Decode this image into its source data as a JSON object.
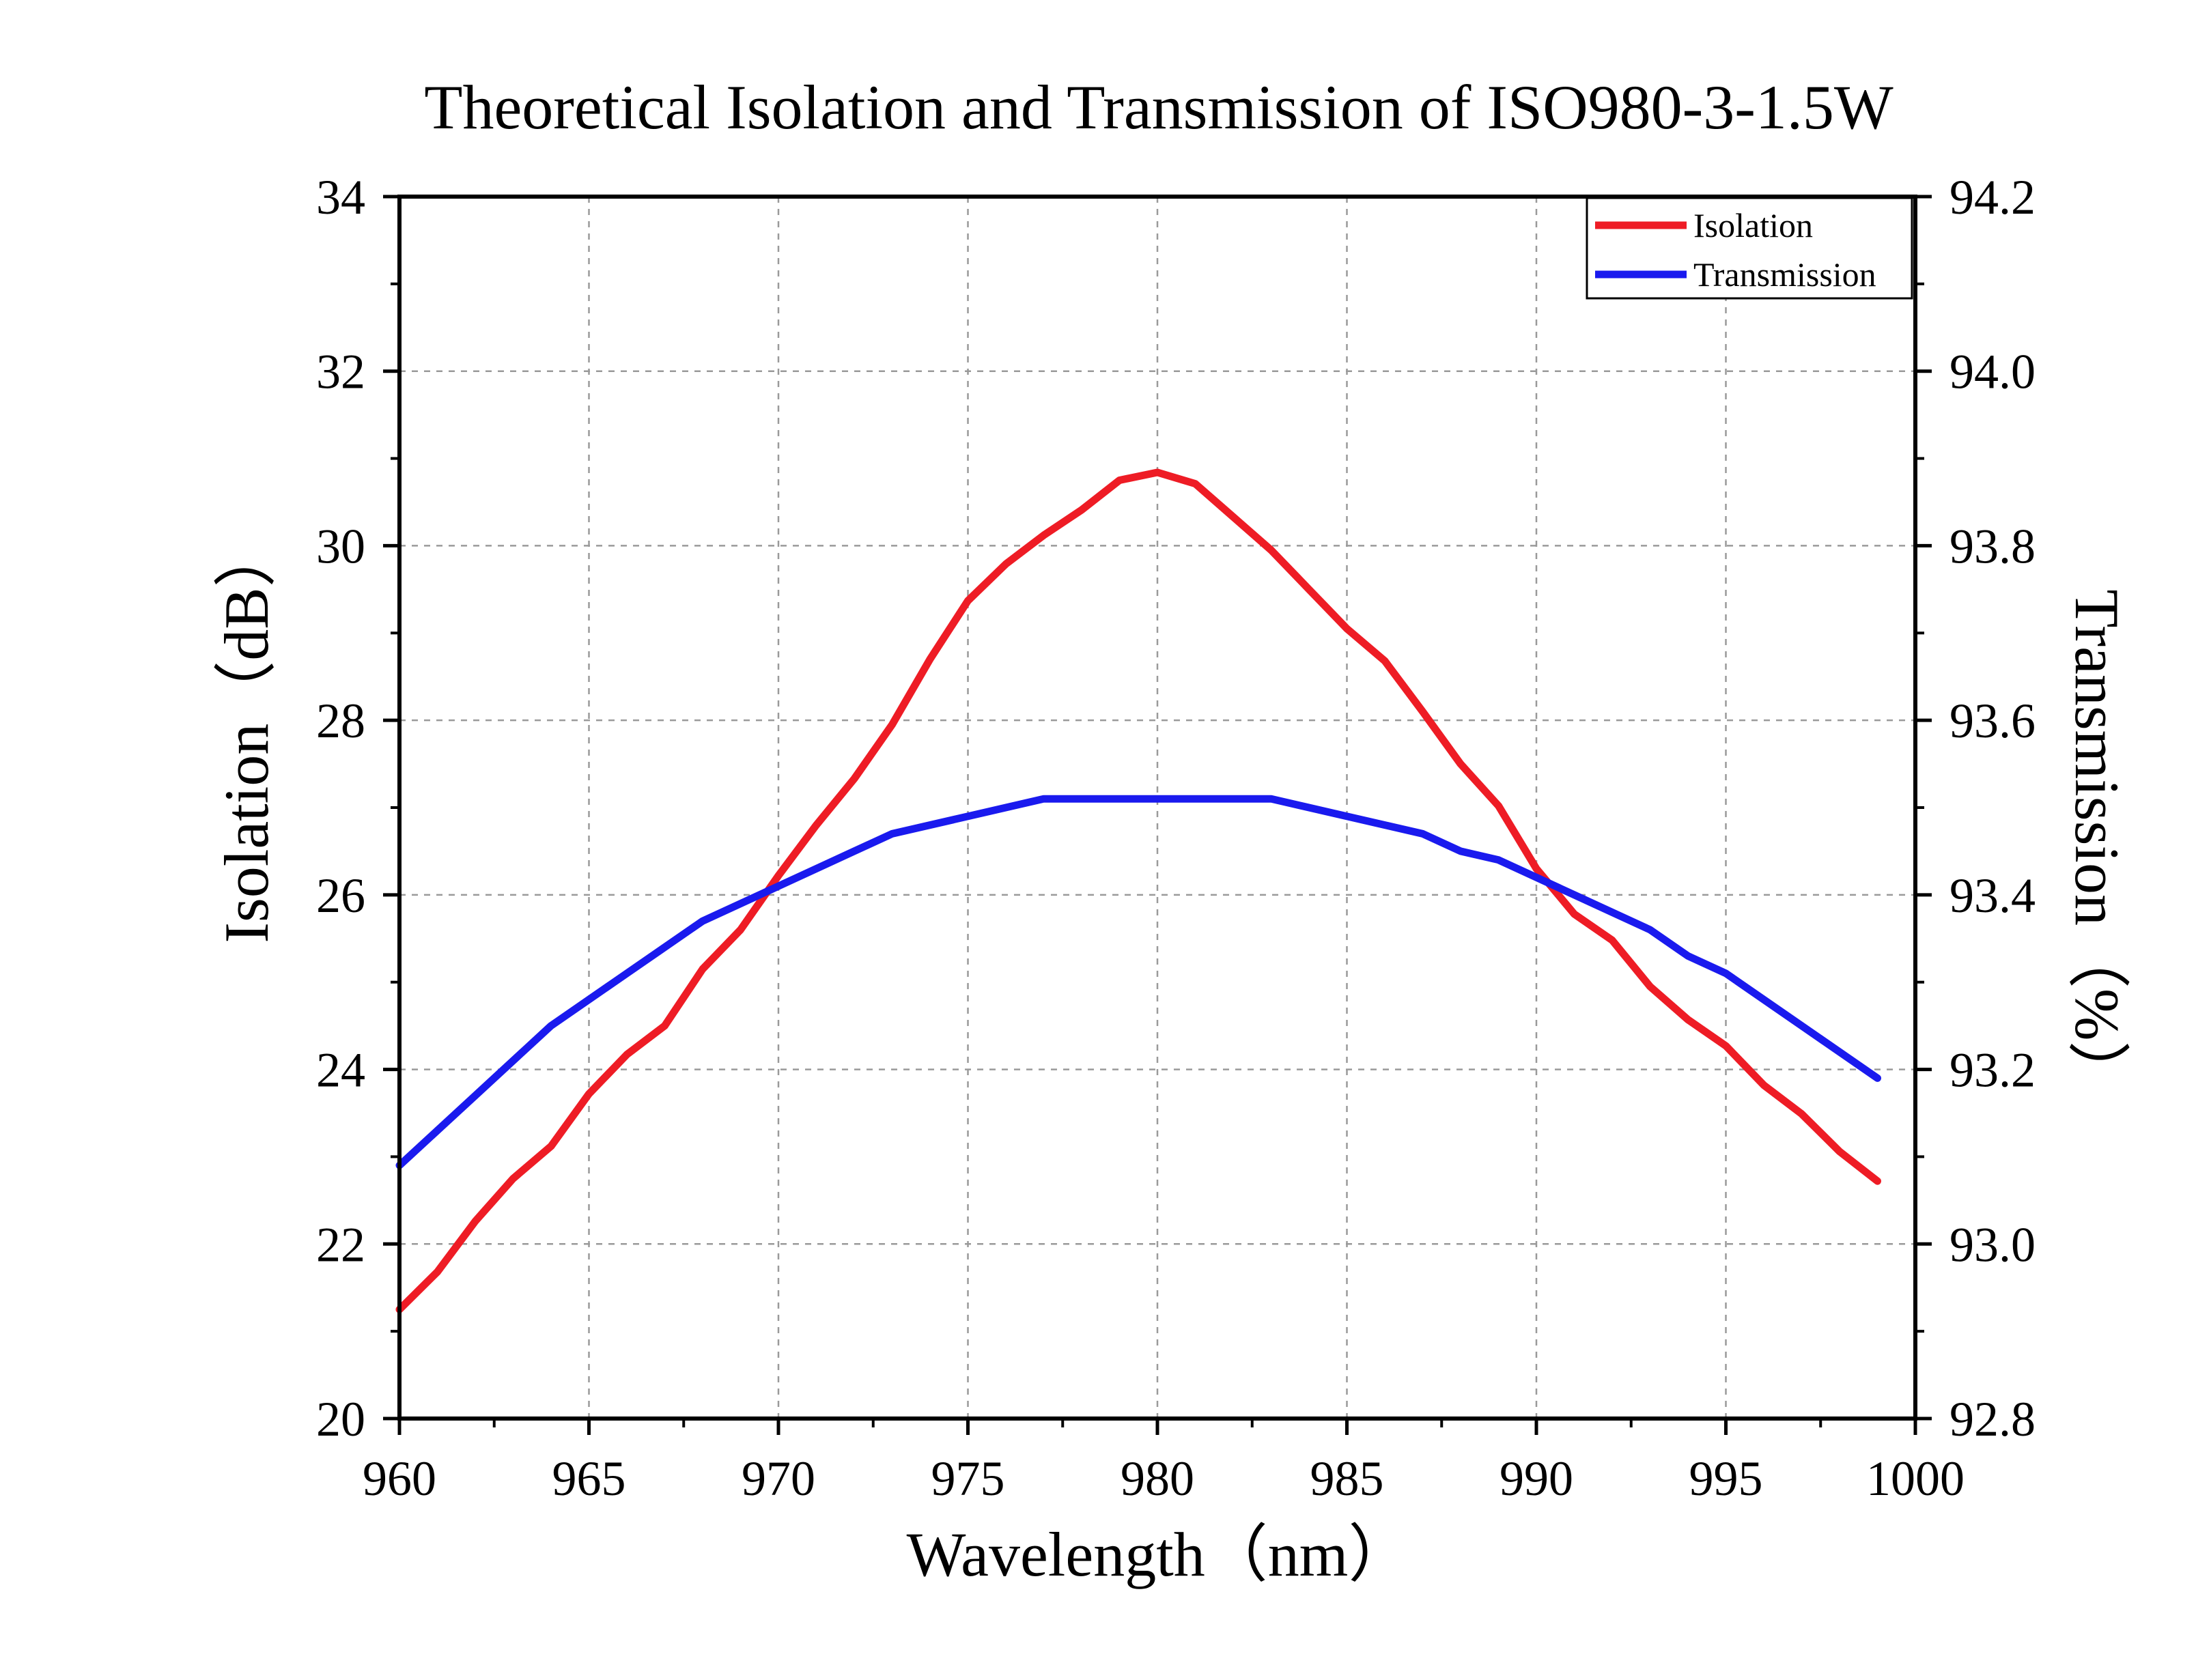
{
  "chart_data": {
    "type": "line",
    "title": "Theoretical Isolation and Transmission of ISO980-3-1.5W",
    "xlabel": "Wavelength（nm）",
    "ylabel": "Isolation（dB）",
    "y2label": "Transmission（%）",
    "xlim": [
      960,
      1000
    ],
    "ylim": [
      20,
      34
    ],
    "y2lim": [
      92.8,
      94.2
    ],
    "x_ticks": [
      "960",
      "965",
      "970",
      "975",
      "980",
      "985",
      "990",
      "995",
      "1000"
    ],
    "y_ticks": [
      "20",
      "22",
      "24",
      "26",
      "28",
      "30",
      "32",
      "34"
    ],
    "y2_ticks": [
      "92.8",
      "93.0",
      "93.2",
      "93.4",
      "93.6",
      "93.8",
      "94.0",
      "94.2"
    ],
    "grid": true,
    "legend_position": "top-right",
    "series": [
      {
        "name": "Isolation",
        "axis": "left",
        "color": "#ee1c25",
        "x": [
          960,
          961,
          962,
          963,
          964,
          965,
          966,
          967,
          968,
          969,
          970,
          971,
          972,
          973,
          974,
          975,
          976,
          977,
          978,
          979,
          980,
          981,
          982,
          983,
          984,
          985,
          986,
          987,
          988,
          989,
          990,
          991,
          992,
          993,
          994,
          995,
          996,
          997,
          998,
          999
        ],
        "y": [
          21.25,
          21.68,
          22.26,
          22.75,
          23.12,
          23.72,
          24.17,
          24.5,
          25.15,
          25.6,
          26.22,
          26.8,
          27.33,
          27.95,
          28.7,
          29.37,
          29.79,
          30.12,
          30.41,
          30.75,
          30.84,
          30.71,
          30.33,
          29.95,
          29.5,
          29.05,
          28.68,
          28.1,
          27.5,
          27.02,
          26.3,
          25.78,
          25.48,
          24.95,
          24.57,
          24.27,
          23.82,
          23.49,
          23.06,
          22.72
        ]
      },
      {
        "name": "Transmission",
        "axis": "right",
        "color": "#1a1aee",
        "x": [
          960,
          962,
          964,
          966,
          968,
          970,
          972,
          973,
          975,
          977,
          979,
          981,
          983,
          985,
          987,
          988,
          989,
          991,
          993,
          994,
          995,
          997,
          999
        ],
        "y": [
          93.09,
          93.17,
          93.25,
          93.31,
          93.37,
          93.41,
          93.45,
          93.47,
          93.49,
          93.51,
          93.51,
          93.51,
          93.51,
          93.49,
          93.47,
          93.45,
          93.44,
          93.4,
          93.36,
          93.33,
          93.31,
          93.25,
          93.19
        ]
      }
    ]
  }
}
